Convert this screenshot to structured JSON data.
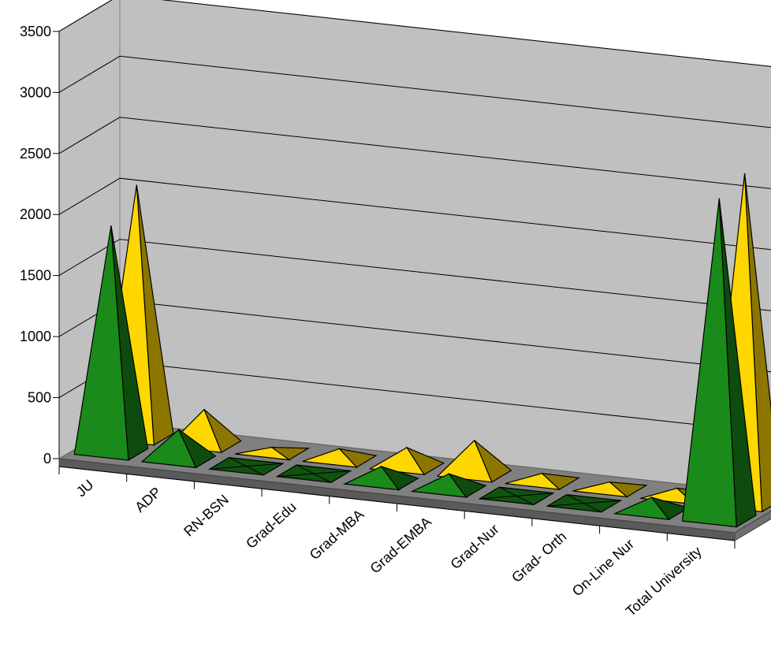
{
  "chart_data": {
    "type": "bar",
    "style": "3d-pyramid",
    "categories": [
      "JU",
      "ADP",
      "RN-BSN",
      "Grad-Edu",
      "Grad-MBA",
      "Grad-EMBA",
      "Grad-Nur",
      "Grad- Orth",
      "On-Line Nur",
      "Total University"
    ],
    "series": [
      {
        "color": "#1a8a1a",
        "values": [
          1850,
          240,
          0,
          0,
          120,
          120,
          0,
          0,
          110,
          2620
        ]
      },
      {
        "color": "#ffd700",
        "values": [
          2060,
          280,
          30,
          80,
          150,
          270,
          60,
          50,
          60,
          2700
        ]
      }
    ],
    "yticks": [
      0,
      500,
      1000,
      1500,
      2000,
      2500,
      3000,
      3500
    ],
    "ylim": [
      0,
      3500
    ],
    "title": "",
    "xlabel": "",
    "ylabel": "",
    "grid": true,
    "colors": {
      "wall": "#c0c0c0",
      "floor": "#808080"
    }
  }
}
